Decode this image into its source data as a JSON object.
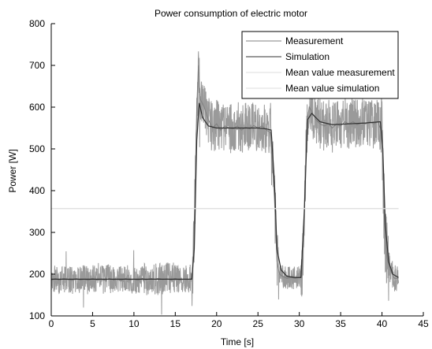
{
  "chart_data": {
    "type": "line",
    "title": "Power consumption of electric motor",
    "xlabel": "Time [s]",
    "ylabel": "Power [W]",
    "xlim": [
      0,
      45
    ],
    "ylim": [
      100,
      800
    ],
    "x_ticks": [
      0,
      5,
      10,
      15,
      20,
      25,
      30,
      35,
      40,
      45
    ],
    "y_ticks": [
      100,
      200,
      300,
      400,
      500,
      600,
      700,
      800
    ],
    "x_tick_labels": [
      "0",
      "5",
      "10",
      "15",
      "20",
      "25",
      "30",
      "35",
      "40",
      "45"
    ],
    "y_tick_labels": [
      "100",
      "200",
      "300",
      "400",
      "500",
      "600",
      "700",
      "800"
    ],
    "grid": false,
    "legend_position": "top-right",
    "series": [
      {
        "name": "Measurement",
        "color": "#808080",
        "points": [
          [
            0,
            185
          ],
          [
            0.5,
            190
          ],
          [
            1,
            185
          ],
          [
            1.5,
            190
          ],
          [
            2,
            187
          ],
          [
            2.5,
            185
          ],
          [
            3,
            190
          ],
          [
            3.5,
            186
          ],
          [
            4,
            188
          ],
          [
            4.5,
            185
          ],
          [
            5,
            190
          ],
          [
            5.5,
            186
          ],
          [
            6,
            188
          ],
          [
            6.5,
            185
          ],
          [
            7,
            190
          ],
          [
            7.5,
            186
          ],
          [
            8,
            188
          ],
          [
            8.5,
            185
          ],
          [
            9,
            190
          ],
          [
            9.5,
            186
          ],
          [
            10,
            188
          ],
          [
            10.5,
            185
          ],
          [
            11,
            190
          ],
          [
            11.5,
            186
          ],
          [
            12,
            190
          ],
          [
            12.5,
            188
          ],
          [
            13,
            190
          ],
          [
            13.5,
            187
          ],
          [
            14,
            189
          ],
          [
            14.5,
            186
          ],
          [
            15,
            190
          ],
          [
            15.5,
            186
          ],
          [
            16,
            188
          ],
          [
            16.5,
            187
          ],
          [
            17,
            190
          ],
          [
            17.2,
            250
          ],
          [
            17.4,
            400
          ],
          [
            17.6,
            600
          ],
          [
            17.8,
            700
          ],
          [
            18,
            620
          ],
          [
            18.5,
            600
          ],
          [
            19,
            570
          ],
          [
            19.5,
            550
          ],
          [
            20,
            560
          ],
          [
            20.5,
            545
          ],
          [
            21,
            555
          ],
          [
            21.5,
            550
          ],
          [
            22,
            548
          ],
          [
            22.5,
            555
          ],
          [
            23,
            545
          ],
          [
            23.5,
            552
          ],
          [
            24,
            548
          ],
          [
            24.5,
            556
          ],
          [
            25,
            550
          ],
          [
            25.5,
            555
          ],
          [
            26,
            545
          ],
          [
            26.5,
            540
          ],
          [
            27,
            380
          ],
          [
            27.3,
            230
          ],
          [
            27.6,
            200
          ],
          [
            28,
            195
          ],
          [
            28.5,
            190
          ],
          [
            29,
            192
          ],
          [
            29.5,
            190
          ],
          [
            30,
            192
          ],
          [
            30.3,
            195
          ],
          [
            30.6,
            330
          ],
          [
            30.9,
            560
          ],
          [
            31.2,
            600
          ],
          [
            31.5,
            590
          ],
          [
            32,
            570
          ],
          [
            32.5,
            560
          ],
          [
            33,
            555
          ],
          [
            33.5,
            560
          ],
          [
            34,
            550
          ],
          [
            34.5,
            560
          ],
          [
            35,
            555
          ],
          [
            35.5,
            565
          ],
          [
            36,
            560
          ],
          [
            36.5,
            565
          ],
          [
            37,
            558
          ],
          [
            37.5,
            562
          ],
          [
            38,
            560
          ],
          [
            38.5,
            565
          ],
          [
            39,
            560
          ],
          [
            39.5,
            565
          ],
          [
            40,
            540
          ],
          [
            40.3,
            320
          ],
          [
            40.6,
            240
          ],
          [
            41,
            210
          ],
          [
            41.5,
            190
          ],
          [
            42,
            190
          ]
        ]
      },
      {
        "name": "Simulation",
        "color": "#303030",
        "points": [
          [
            0,
            188
          ],
          [
            4,
            188
          ],
          [
            8,
            188
          ],
          [
            12,
            188
          ],
          [
            16,
            188
          ],
          [
            17,
            188
          ],
          [
            17.3,
            260
          ],
          [
            17.6,
            520
          ],
          [
            17.9,
            610
          ],
          [
            18.3,
            575
          ],
          [
            19,
            555
          ],
          [
            20,
            550
          ],
          [
            21,
            550
          ],
          [
            22,
            550
          ],
          [
            23,
            550
          ],
          [
            24,
            550
          ],
          [
            25,
            550
          ],
          [
            26,
            548
          ],
          [
            26.6,
            545
          ],
          [
            27.0,
            420
          ],
          [
            27.3,
            260
          ],
          [
            27.8,
            210
          ],
          [
            28.5,
            195
          ],
          [
            29.5,
            192
          ],
          [
            30.2,
            192
          ],
          [
            30.6,
            350
          ],
          [
            31.0,
            570
          ],
          [
            31.5,
            585
          ],
          [
            32.5,
            565
          ],
          [
            34,
            558
          ],
          [
            36,
            560
          ],
          [
            38,
            562
          ],
          [
            39.8,
            565
          ],
          [
            40.1,
            500
          ],
          [
            40.4,
            320
          ],
          [
            40.8,
            230
          ],
          [
            41.3,
            200
          ],
          [
            42,
            192
          ]
        ]
      },
      {
        "name": "Mean value measurement",
        "color": "#dcdcdc",
        "points": [
          [
            0,
            357
          ],
          [
            42,
            357
          ]
        ]
      },
      {
        "name": "Mean value simulation",
        "color": "#dcdcdc",
        "points": [
          [
            0,
            357
          ],
          [
            42,
            357
          ]
        ]
      }
    ],
    "annotations": [],
    "style": {
      "noise_band_color": "#9a9a9a"
    }
  }
}
